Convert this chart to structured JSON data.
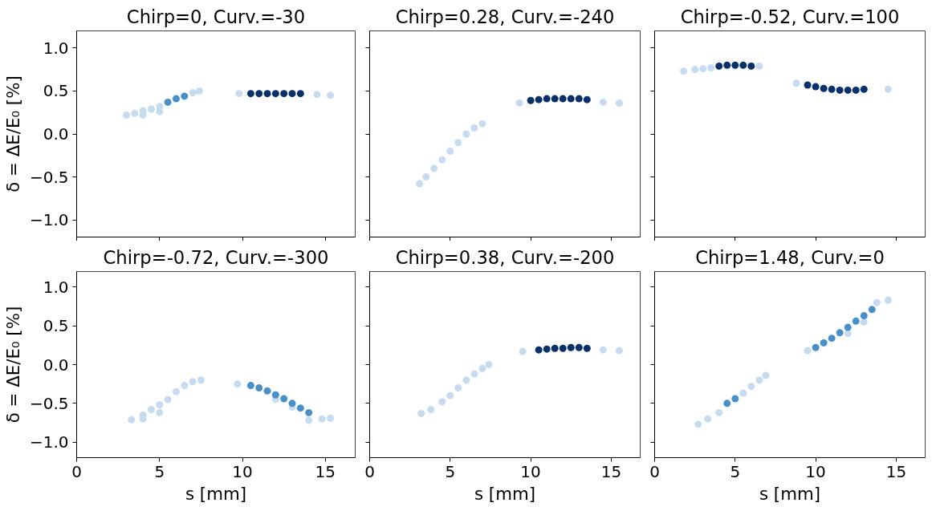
{
  "chart_data": [
    {
      "type": "scatter",
      "title": "Chirp=0, Curv.=-30",
      "ylabel": "δ = ΔE/E₀ [%]",
      "marker": "circle",
      "grid": false,
      "tick_labels": "y",
      "xlim": [
        0,
        16.8
      ],
      "ylim": [
        -1.2,
        1.2
      ],
      "xticks": [
        {
          "value": 0,
          "label": null
        },
        {
          "value": 5,
          "label": null
        },
        {
          "value": 10,
          "label": null
        },
        {
          "value": 15,
          "label": null
        }
      ],
      "yticks": [
        {
          "value": -1.0,
          "label": "−1.0"
        },
        {
          "value": -0.5,
          "label": "−0.5"
        },
        {
          "value": 0.0,
          "label": "0.0"
        },
        {
          "value": 0.5,
          "label": "0.5"
        },
        {
          "value": 1.0,
          "label": "1.0"
        }
      ],
      "series": [
        {
          "color": "#c6dbef",
          "x": [
            3,
            3.5,
            4,
            4.5,
            5,
            7,
            7.4,
            4,
            5,
            9.8,
            14.5,
            15.3
          ],
          "values": [
            0.22,
            0.24,
            0.27,
            0.29,
            0.32,
            0.48,
            0.5,
            0.22,
            0.26,
            0.47,
            0.46,
            0.45
          ]
        },
        {
          "color": "#4a90c8",
          "x": [
            5.5,
            6,
            6.5
          ],
          "values": [
            0.37,
            0.41,
            0.44
          ]
        },
        {
          "color": "#08306b",
          "x": [
            10.5,
            11,
            11.5,
            12,
            12.5,
            13,
            13.5
          ],
          "values": [
            0.47,
            0.47,
            0.47,
            0.47,
            0.47,
            0.47,
            0.47
          ]
        }
      ]
    },
    {
      "type": "scatter",
      "title": "Chirp=0.28, Curv.=-240",
      "marker": "circle",
      "grid": false,
      "tick_labels": false,
      "xlim": [
        0,
        16.8
      ],
      "ylim": [
        -1.2,
        1.2
      ],
      "xticks": [
        {
          "value": 0,
          "label": null
        },
        {
          "value": 5,
          "label": null
        },
        {
          "value": 10,
          "label": null
        },
        {
          "value": 15,
          "label": null
        }
      ],
      "yticks": [
        {
          "value": -1.0,
          "label": null
        },
        {
          "value": -0.5,
          "label": null
        },
        {
          "value": 0.0,
          "label": null
        },
        {
          "value": 0.5,
          "label": null
        },
        {
          "value": 1.0,
          "label": null
        }
      ],
      "series": [
        {
          "color": "#c6dbef",
          "x": [
            3.1,
            3.5,
            4,
            4.5,
            5,
            5.5,
            6,
            6.5,
            7,
            9.3,
            14.5,
            15.5
          ],
          "values": [
            -0.58,
            -0.5,
            -0.4,
            -0.3,
            -0.2,
            -0.1,
            0,
            0.07,
            0.12,
            0.36,
            0.37,
            0.36
          ]
        },
        {
          "color": "#08306b",
          "x": [
            10,
            10.5,
            11,
            11.5,
            12,
            12.5,
            13,
            13.5
          ],
          "values": [
            0.39,
            0.4,
            0.41,
            0.41,
            0.41,
            0.41,
            0.41,
            0.4
          ]
        }
      ]
    },
    {
      "type": "scatter",
      "title": "Chirp=-0.52, Curv.=100",
      "marker": "circle",
      "grid": false,
      "tick_labels": false,
      "xlim": [
        0,
        16.8
      ],
      "ylim": [
        -1.2,
        1.2
      ],
      "xticks": [
        {
          "value": 0,
          "label": null
        },
        {
          "value": 5,
          "label": null
        },
        {
          "value": 10,
          "label": null
        },
        {
          "value": 15,
          "label": null
        }
      ],
      "yticks": [
        {
          "value": -1.0,
          "label": null
        },
        {
          "value": -0.5,
          "label": null
        },
        {
          "value": 0.0,
          "label": null
        },
        {
          "value": 0.5,
          "label": null
        },
        {
          "value": 1.0,
          "label": null
        }
      ],
      "series": [
        {
          "color": "#c6dbef",
          "x": [
            1.8,
            2.5,
            3,
            3.5,
            6.5,
            8.8,
            14.5
          ],
          "values": [
            0.73,
            0.75,
            0.76,
            0.77,
            0.79,
            0.59,
            0.52
          ]
        },
        {
          "color": "#08306b",
          "x": [
            4,
            4.5,
            5,
            5.5,
            6,
            9.5,
            10,
            10.5,
            11,
            11.5,
            12,
            12.5,
            13
          ],
          "values": [
            0.79,
            0.8,
            0.8,
            0.8,
            0.79,
            0.57,
            0.55,
            0.53,
            0.52,
            0.51,
            0.51,
            0.51,
            0.52
          ]
        }
      ]
    },
    {
      "type": "scatter",
      "title": "Chirp=-0.72, Curv.=-300",
      "xlabel": "s [mm]",
      "ylabel": "δ = ΔE/E₀ [%]",
      "marker": "circle",
      "grid": false,
      "xlim": [
        0,
        16.8
      ],
      "ylim": [
        -1.2,
        1.2
      ],
      "xticks": [
        0,
        5,
        10,
        15
      ],
      "yticks": [
        {
          "value": -1.0,
          "label": "−1.0"
        },
        {
          "value": -0.5,
          "label": "−0.5"
        },
        {
          "value": 0.0,
          "label": "0.0"
        },
        {
          "value": 0.5,
          "label": "0.5"
        },
        {
          "value": 1.0,
          "label": "1.0"
        }
      ],
      "series": [
        {
          "color": "#c6dbef",
          "x": [
            3.3,
            4,
            4.5,
            5,
            5.5,
            6,
            6.5,
            7,
            7.5,
            5,
            4,
            9.7,
            12,
            13,
            14,
            15.3,
            14.8
          ],
          "values": [
            -0.71,
            -0.65,
            -0.58,
            -0.52,
            -0.45,
            -0.35,
            -0.27,
            -0.22,
            -0.2,
            -0.62,
            -0.7,
            -0.25,
            -0.45,
            -0.55,
            -0.72,
            -0.69,
            -0.7
          ]
        },
        {
          "color": "#4a90c8",
          "x": [
            10.5,
            11,
            11.5,
            12,
            12.5,
            13,
            13.5,
            14
          ],
          "values": [
            -0.27,
            -0.3,
            -0.34,
            -0.39,
            -0.44,
            -0.5,
            -0.56,
            -0.62
          ]
        }
      ]
    },
    {
      "type": "scatter",
      "title": "Chirp=0.38, Curv.=-200",
      "xlabel": "s [mm]",
      "marker": "circle",
      "grid": false,
      "tick_labels": "x",
      "xlim": [
        0,
        16.8
      ],
      "ylim": [
        -1.2,
        1.2
      ],
      "xticks": [
        0,
        5,
        10,
        15
      ],
      "yticks": [
        {
          "value": -1.0,
          "label": null
        },
        {
          "value": -0.5,
          "label": null
        },
        {
          "value": 0.0,
          "label": null
        },
        {
          "value": 0.5,
          "label": null
        },
        {
          "value": 1.0,
          "label": null
        }
      ],
      "series": [
        {
          "color": "#c6dbef",
          "x": [
            3.2,
            3.8,
            4.5,
            5,
            5.5,
            6,
            6.5,
            7,
            7.4,
            9.5,
            14.5,
            15.5
          ],
          "values": [
            -0.63,
            -0.58,
            -0.48,
            -0.4,
            -0.3,
            -0.2,
            -0.12,
            -0.05,
            0,
            0.17,
            0.19,
            0.18
          ]
        },
        {
          "color": "#08306b",
          "x": [
            10.5,
            11,
            11.5,
            12,
            12.5,
            13,
            13.5
          ],
          "values": [
            0.19,
            0.2,
            0.21,
            0.21,
            0.22,
            0.22,
            0.21
          ]
        }
      ]
    },
    {
      "type": "scatter",
      "title": "Chirp=1.48, Curv.=0",
      "xlabel": "s [mm]",
      "marker": "circle",
      "grid": false,
      "tick_labels": "x",
      "xlim": [
        0,
        16.8
      ],
      "ylim": [
        -1.2,
        1.2
      ],
      "xticks": [
        0,
        5,
        10,
        15
      ],
      "yticks": [
        {
          "value": -1.0,
          "label": null
        },
        {
          "value": -0.5,
          "label": null
        },
        {
          "value": 0.0,
          "label": null
        },
        {
          "value": 0.5,
          "label": null
        },
        {
          "value": 1.0,
          "label": null
        }
      ],
      "series": [
        {
          "color": "#c6dbef",
          "x": [
            2.7,
            3.3,
            4,
            5.5,
            6,
            6.5,
            6.9,
            9.5,
            12,
            13,
            13.8,
            14.5
          ],
          "values": [
            -0.77,
            -0.7,
            -0.62,
            -0.37,
            -0.28,
            -0.2,
            -0.14,
            0.18,
            0.4,
            0.55,
            0.8,
            0.83
          ]
        },
        {
          "color": "#4a90c8",
          "x": [
            4.5,
            5,
            10,
            10.5,
            11,
            11.5,
            12,
            12.5,
            13,
            13.5
          ],
          "values": [
            -0.5,
            -0.44,
            0.22,
            0.28,
            0.34,
            0.41,
            0.48,
            0.56,
            0.63,
            0.71
          ]
        }
      ]
    }
  ]
}
